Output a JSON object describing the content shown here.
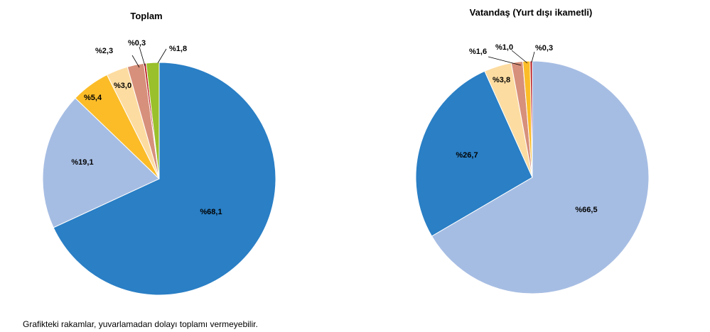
{
  "chart_data": [
    {
      "type": "pie",
      "title": "Toplam",
      "slices": [
        {
          "label": "%68,1",
          "value": 68.1,
          "color": "#2a7fc5"
        },
        {
          "label": "%19,1",
          "value": 19.1,
          "color": "#a6bde3"
        },
        {
          "label": "%5,4",
          "value": 5.4,
          "color": "#fbbc28"
        },
        {
          "label": "%3,0",
          "value": 3.0,
          "color": "#fddca1"
        },
        {
          "label": "%2,3",
          "value": 2.3,
          "color": "#d7907b"
        },
        {
          "label": "%0,3",
          "value": 0.3,
          "color": "#b8161b"
        },
        {
          "label": "%1,8",
          "value": 1.8,
          "color": "#9ac02b"
        }
      ]
    },
    {
      "type": "pie",
      "title": "Vatandaş (Yurt dışı ikametli)",
      "slices": [
        {
          "label": "%66,5",
          "value": 66.5,
          "color": "#a6bde3"
        },
        {
          "label": "%26,7",
          "value": 26.7,
          "color": "#2a7fc5"
        },
        {
          "label": "%3,8",
          "value": 3.8,
          "color": "#fddca1"
        },
        {
          "label": "%1,6",
          "value": 1.6,
          "color": "#d7907b"
        },
        {
          "label": "%1,0",
          "value": 1.0,
          "color": "#fbbc28"
        },
        {
          "label": "%0,3",
          "value": 0.3,
          "color": "#b8161b"
        }
      ]
    }
  ],
  "footnote": "Grafikteki rakamlar, yuvarlamadan dolayı toplamı vermeyebilir."
}
